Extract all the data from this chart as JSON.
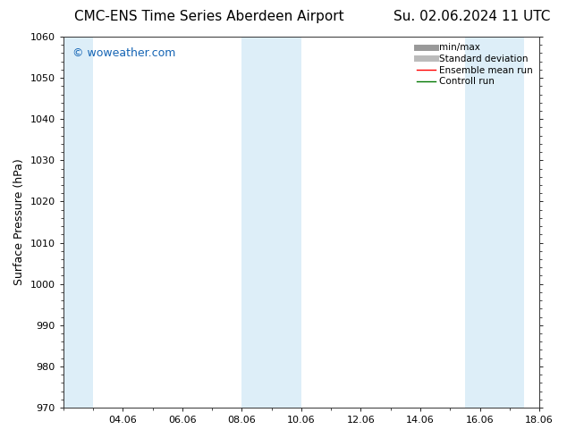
{
  "title_left": "CMC-ENS Time Series Aberdeen Airport",
  "title_right": "Su. 02.06.2024 11 UTC",
  "ylabel": "Surface Pressure (hPa)",
  "ylim": [
    970,
    1060
  ],
  "yticks": [
    970,
    980,
    990,
    1000,
    1010,
    1020,
    1030,
    1040,
    1050,
    1060
  ],
  "xlim": [
    0,
    16
  ],
  "xtick_labels": [
    "04.06",
    "06.06",
    "08.06",
    "10.06",
    "12.06",
    "14.06",
    "16.06",
    "18.06"
  ],
  "xtick_positions": [
    2,
    4,
    6,
    8,
    10,
    12,
    14,
    16
  ],
  "shaded_bands": [
    {
      "x_start": 0.0,
      "x_end": 1.0,
      "color": "#ddeef8"
    },
    {
      "x_start": 6.0,
      "x_end": 8.0,
      "color": "#ddeef8"
    },
    {
      "x_start": 13.5,
      "x_end": 15.5,
      "color": "#ddeef8"
    }
  ],
  "legend_items": [
    {
      "label": "min/max",
      "color": "#999999",
      "lw": 5,
      "style": "solid"
    },
    {
      "label": "Standard deviation",
      "color": "#bbbbbb",
      "lw": 5,
      "style": "solid"
    },
    {
      "label": "Ensemble mean run",
      "color": "#ff0000",
      "lw": 1.0,
      "style": "solid"
    },
    {
      "label": "Controll run",
      "color": "#007700",
      "lw": 1.0,
      "style": "solid"
    }
  ],
  "watermark": "© woweather.com",
  "watermark_color": "#1464b4",
  "bg_color": "#ffffff",
  "title_fontsize": 11,
  "axis_label_fontsize": 9,
  "tick_fontsize": 8,
  "legend_fontsize": 7.5
}
